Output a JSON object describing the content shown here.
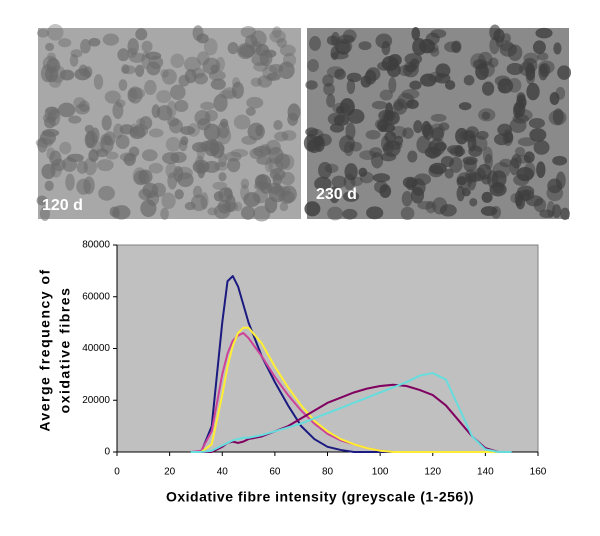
{
  "panels": {
    "left_label": "120 d",
    "right_label": "230 d"
  },
  "chart_data": {
    "type": "line",
    "x_label": "Oxidative fibre intensity (greyscale (1-256))",
    "y_label": [
      "Averge frequency of",
      "oxidative fibres"
    ],
    "x": [
      28,
      32,
      36,
      40,
      42,
      44,
      46,
      48,
      50,
      55,
      60,
      65,
      70,
      75,
      80,
      85,
      90,
      95,
      100,
      105,
      110,
      115,
      120,
      125,
      130,
      135,
      140,
      145,
      150
    ],
    "series": [
      {
        "color": "#1a1a80",
        "values": [
          0,
          0,
          10000,
          50000,
          66000,
          68000,
          64000,
          57000,
          50000,
          37000,
          27000,
          18000,
          10000,
          5000,
          2000,
          800,
          0,
          0,
          0,
          0,
          0,
          0,
          0,
          0,
          0,
          0,
          0,
          0,
          0
        ]
      },
      {
        "color": "#cc4499",
        "values": [
          0,
          500,
          8000,
          30000,
          38000,
          43000,
          45000,
          46000,
          44000,
          37000,
          29000,
          22000,
          16000,
          11000,
          7000,
          4500,
          3000,
          1500,
          500,
          0,
          0,
          0,
          0,
          0,
          0,
          0,
          0,
          0,
          0
        ]
      },
      {
        "color": "#ffee33",
        "values": [
          0,
          0,
          3000,
          22000,
          33000,
          41000,
          46000,
          48000,
          48000,
          42000,
          33000,
          25000,
          18000,
          12000,
          8000,
          5000,
          3000,
          1500,
          500,
          0,
          0,
          0,
          0,
          0,
          0,
          0,
          0,
          0,
          0
        ]
      },
      {
        "color": "#800060",
        "values": [
          0,
          0,
          0,
          2000,
          3500,
          4000,
          3500,
          4000,
          5000,
          6000,
          8000,
          10000,
          13000,
          16000,
          19000,
          21000,
          23000,
          24500,
          25500,
          26000,
          25500,
          24000,
          22000,
          18000,
          12000,
          6000,
          1500,
          0,
          0
        ]
      },
      {
        "color": "#66dddd",
        "values": [
          0,
          0,
          500,
          2500,
          3500,
          4500,
          5000,
          5500,
          5500,
          6500,
          8000,
          9500,
          11000,
          13000,
          15000,
          17000,
          19000,
          21000,
          23000,
          25000,
          27000,
          29500,
          30500,
          28000,
          17000,
          6000,
          1000,
          0,
          0
        ]
      }
    ],
    "xlim": [
      0,
      160
    ],
    "xticks": [
      0,
      20,
      40,
      60,
      80,
      100,
      120,
      140,
      160
    ],
    "ylim": [
      0,
      80000
    ],
    "yticks": [
      0,
      20000,
      40000,
      60000,
      80000
    ],
    "background": "#c0c0c0"
  }
}
